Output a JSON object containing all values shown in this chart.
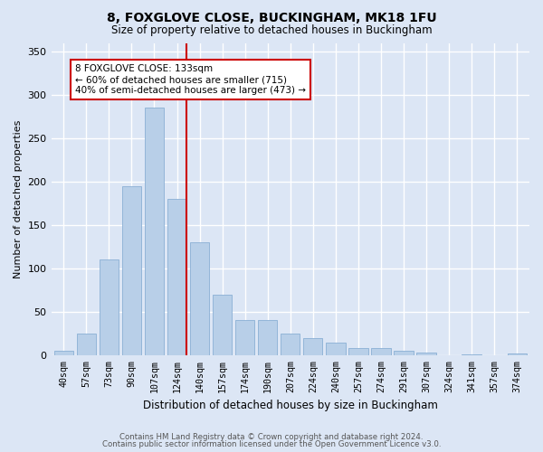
{
  "title": "8, FOXGLOVE CLOSE, BUCKINGHAM, MK18 1FU",
  "subtitle": "Size of property relative to detached houses in Buckingham",
  "xlabel": "Distribution of detached houses by size in Buckingham",
  "ylabel": "Number of detached properties",
  "footnote1": "Contains HM Land Registry data © Crown copyright and database right 2024.",
  "footnote2": "Contains public sector information licensed under the Open Government Licence v3.0.",
  "categories": [
    "40sqm",
    "57sqm",
    "73sqm",
    "90sqm",
    "107sqm",
    "124sqm",
    "140sqm",
    "157sqm",
    "174sqm",
    "190sqm",
    "207sqm",
    "224sqm",
    "240sqm",
    "257sqm",
    "274sqm",
    "291sqm",
    "307sqm",
    "324sqm",
    "341sqm",
    "357sqm",
    "374sqm"
  ],
  "values": [
    5,
    25,
    110,
    195,
    285,
    180,
    130,
    70,
    40,
    40,
    25,
    20,
    14,
    8,
    8,
    5,
    3,
    0,
    1,
    0,
    2
  ],
  "bar_color": "#b8cfe8",
  "bar_edge_color": "#8aafd4",
  "background_color": "#dce6f5",
  "grid_color": "#ffffff",
  "vline_color": "#cc0000",
  "vline_index": 5.43,
  "annotation_text": "8 FOXGLOVE CLOSE: 133sqm\n← 60% of detached houses are smaller (715)\n40% of semi-detached houses are larger (473) →",
  "annotation_box_color": "#ffffff",
  "annotation_box_edgecolor": "#cc0000",
  "ylim": [
    0,
    360
  ],
  "yticks": [
    0,
    50,
    100,
    150,
    200,
    250,
    300,
    350
  ]
}
